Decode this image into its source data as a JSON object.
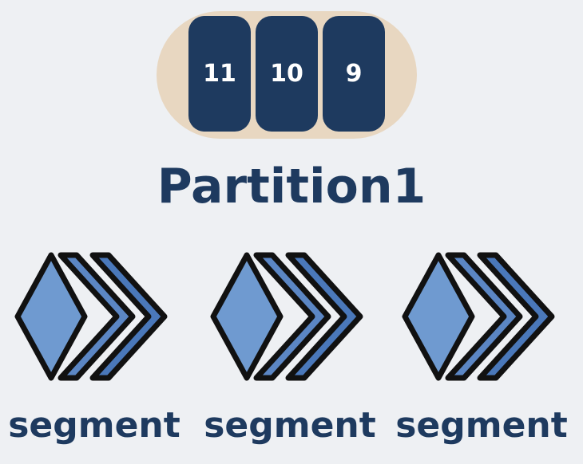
{
  "queue": {
    "items": [
      "11",
      "10",
      "9"
    ]
  },
  "partition": {
    "title": "Partition1"
  },
  "segments": [
    {
      "label": "segment"
    },
    {
      "label": "segment"
    },
    {
      "label": "segment"
    }
  ],
  "colors": {
    "background": "#eef0f3",
    "capsule": "#e8d7c1",
    "block": "#1e3a5f",
    "text": "#1e3a5f",
    "gem_front": "#6f9ad0",
    "gem_middle": "#5b86c4",
    "gem_back": "#4a78ba",
    "outline": "#111111"
  }
}
